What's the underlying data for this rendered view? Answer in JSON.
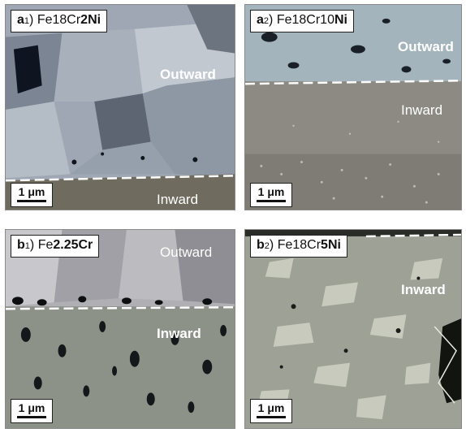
{
  "panels": {
    "a1": {
      "letter": "a",
      "sub": "1",
      "paren": ")",
      "prefix": "Fe18Cr",
      "bold_part": "2Ni",
      "region_top": "Outward",
      "region_bottom": "Inward",
      "scale": "1 μm"
    },
    "a2": {
      "letter": "a",
      "sub": "2",
      "paren": ")",
      "prefix": "Fe18Cr10",
      "bold_part": "Ni",
      "region_top": "Outward",
      "region_bottom": "Inward",
      "scale": "1 μm"
    },
    "b1": {
      "letter": "b",
      "sub": "1",
      "paren": ")",
      "prefix": "Fe",
      "bold_part": "2.25Cr",
      "region_top": "Outward",
      "region_bottom": "Inward",
      "scale": "1 μm"
    },
    "b2": {
      "letter": "b",
      "sub": "2",
      "paren": ")",
      "prefix": "Fe18Cr",
      "bold_part": "5Ni",
      "region_bottom": "Inward",
      "scale": "1 μm"
    }
  }
}
